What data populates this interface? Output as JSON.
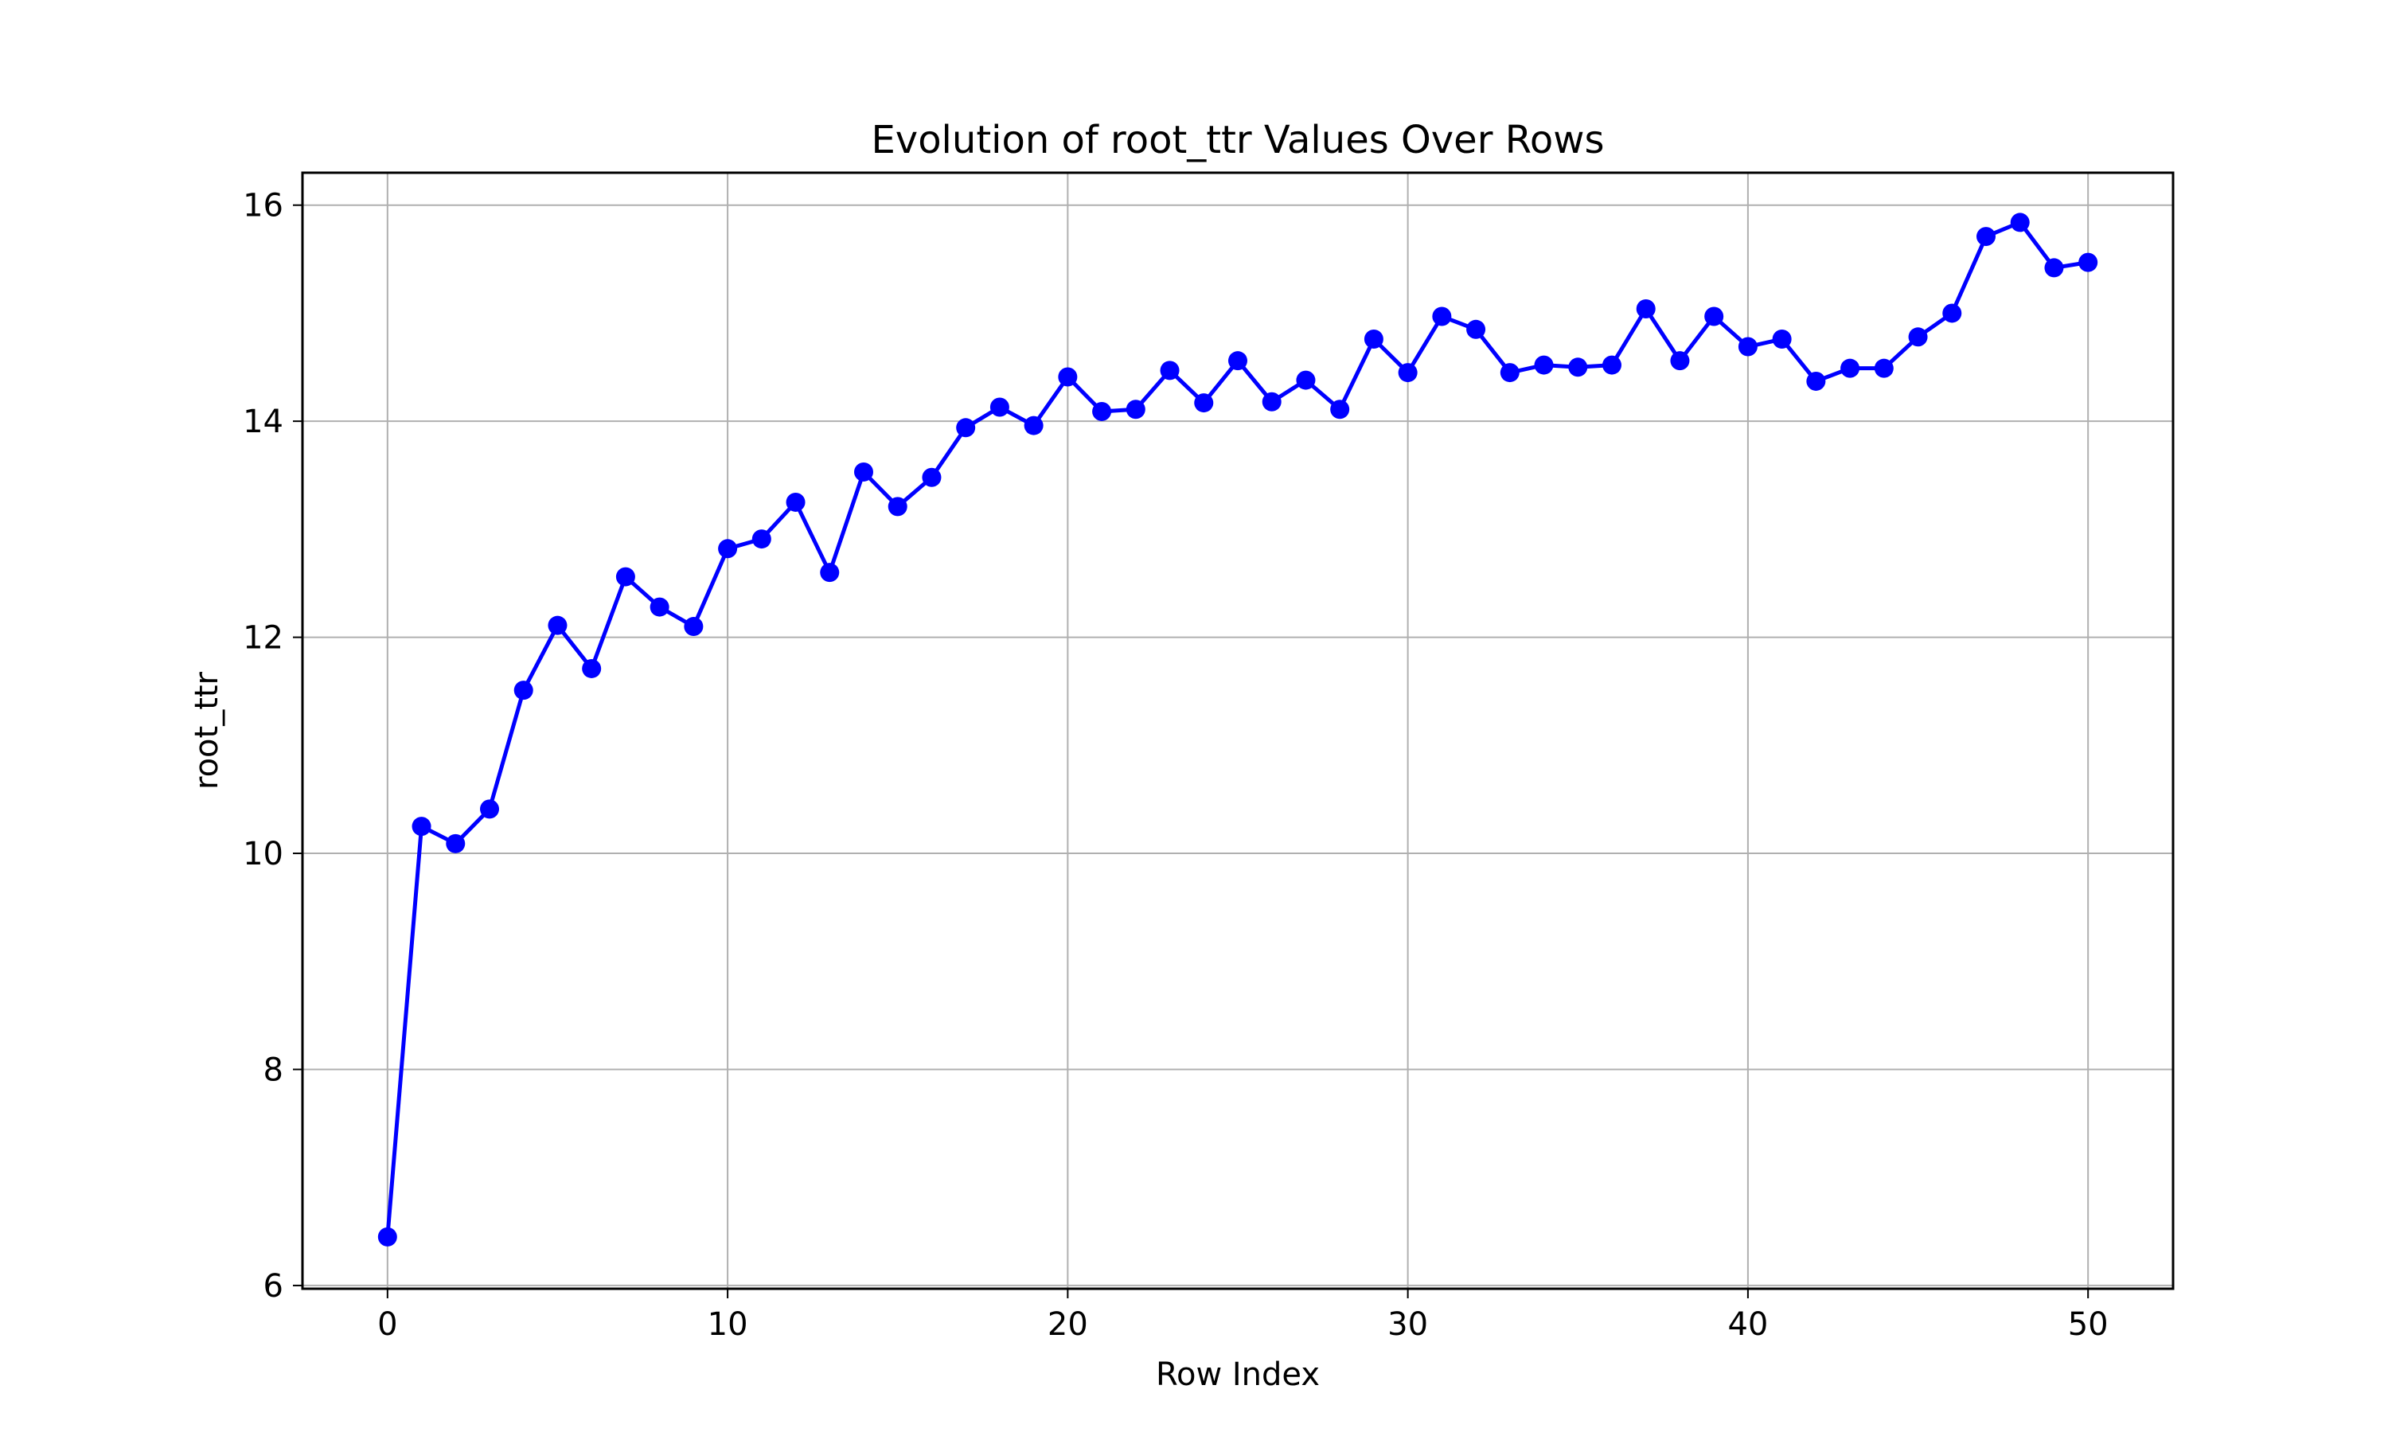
{
  "chart_data": {
    "type": "line",
    "title": "Evolution of root_ttr Values Over Rows",
    "xlabel": "Row Index",
    "ylabel": "root_ttr",
    "xlim": [
      -2.5,
      52.5
    ],
    "ylim": [
      5.97,
      16.3
    ],
    "xticks": [
      0,
      10,
      20,
      30,
      40,
      50
    ],
    "yticks": [
      6,
      8,
      10,
      12,
      14,
      16
    ],
    "grid": true,
    "line_color": "#0000ff",
    "marker": "circle",
    "series": [
      {
        "x": [
          0,
          1,
          2,
          3,
          4,
          5,
          6,
          7,
          8,
          9,
          10,
          11,
          12,
          13,
          14,
          15,
          16,
          17,
          18,
          19,
          20,
          21,
          22,
          23,
          24,
          25,
          26,
          27,
          28,
          29,
          30,
          31,
          32,
          33,
          34,
          35,
          36,
          37,
          38,
          39,
          40,
          41,
          42,
          43,
          44,
          45,
          46,
          47,
          48,
          49,
          50
        ],
        "values": [
          6.45,
          10.25,
          10.09,
          10.41,
          11.51,
          12.11,
          11.71,
          12.56,
          12.28,
          12.1,
          12.82,
          12.91,
          13.25,
          12.6,
          13.53,
          13.21,
          13.48,
          13.94,
          14.13,
          13.96,
          14.41,
          14.09,
          14.11,
          14.47,
          14.17,
          14.56,
          14.18,
          14.38,
          14.11,
          14.76,
          14.45,
          14.97,
          14.85,
          14.45,
          14.52,
          14.5,
          14.52,
          15.04,
          14.56,
          14.97,
          14.69,
          14.76,
          14.37,
          14.49,
          14.49,
          14.78,
          15.0,
          15.71,
          15.84,
          15.42,
          15.47
        ]
      }
    ]
  }
}
